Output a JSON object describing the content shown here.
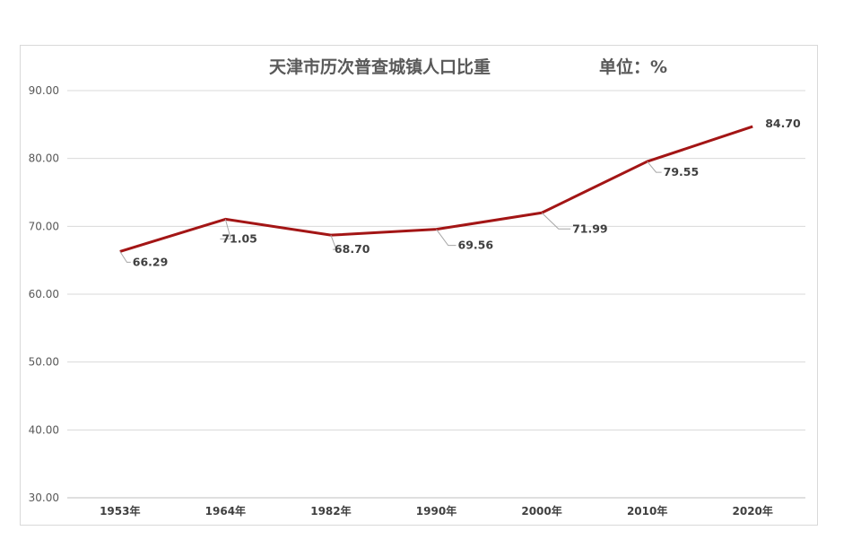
{
  "chart_data": {
    "type": "line",
    "title": "天津市历次普查城镇人口比重",
    "unit_label": "单位：%",
    "categories": [
      "1953年",
      "1964年",
      "1982年",
      "1990年",
      "2000年",
      "2010年",
      "2020年"
    ],
    "series": [
      {
        "values": [
          66.29,
          71.05,
          68.7,
          69.56,
          71.99,
          79.55,
          84.7
        ],
        "labels": [
          "66.29",
          "71.05",
          "68.70",
          "69.56",
          "71.99",
          "79.55",
          "84.70"
        ],
        "color": "#a31515"
      }
    ],
    "yticks": [
      "30.00",
      "40.00",
      "50.00",
      "60.00",
      "70.00",
      "80.00",
      "90.00"
    ],
    "ylim": [
      30,
      90
    ],
    "grid": true,
    "legend": "none"
  }
}
